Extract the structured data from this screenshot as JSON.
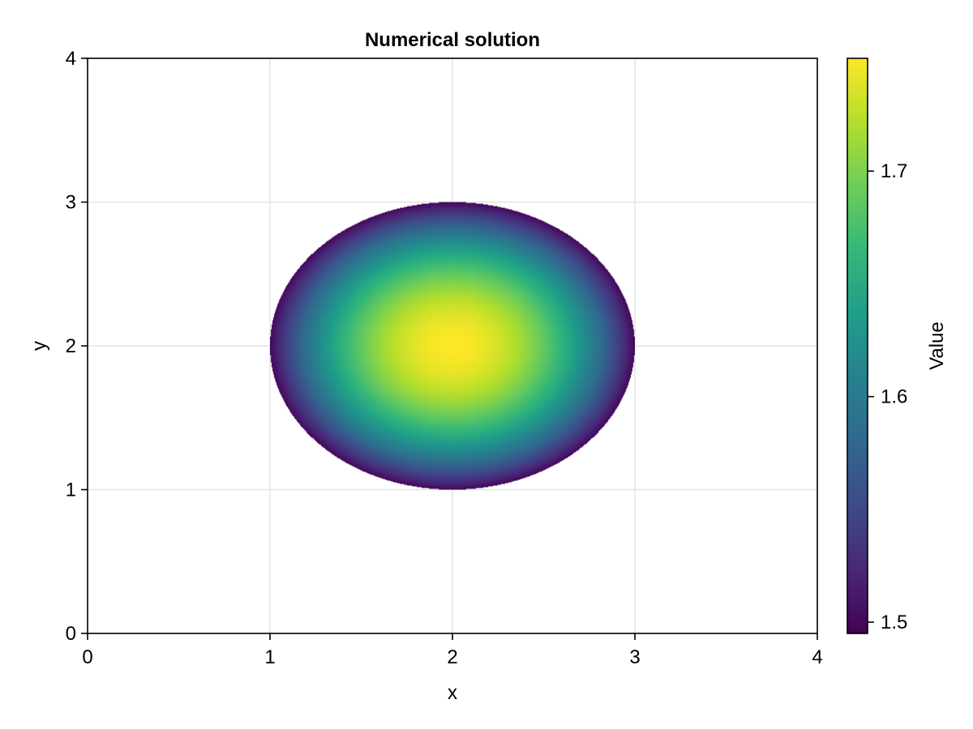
{
  "chart_data": {
    "type": "heatmap",
    "title": "Numerical solution",
    "xlabel": "x",
    "ylabel": "y",
    "xlim": [
      0,
      4
    ],
    "ylim": [
      0,
      4
    ],
    "x_ticks": [
      "0",
      "1",
      "2",
      "3",
      "4"
    ],
    "y_ticks": [
      "0",
      "1",
      "2",
      "3",
      "4"
    ],
    "grid": true,
    "field": {
      "domain": "disk",
      "center": [
        2,
        2
      ],
      "radius": 1,
      "value_at_center": 1.75,
      "value_at_boundary": 1.5,
      "profile": "1.5 + 0.25 * (1 - r^2)"
    },
    "colorbar": {
      "label": "Value",
      "colormap": "viridis",
      "range": [
        1.495,
        1.75
      ],
      "ticks": [
        "1.5",
        "1.6",
        "1.7"
      ]
    }
  }
}
